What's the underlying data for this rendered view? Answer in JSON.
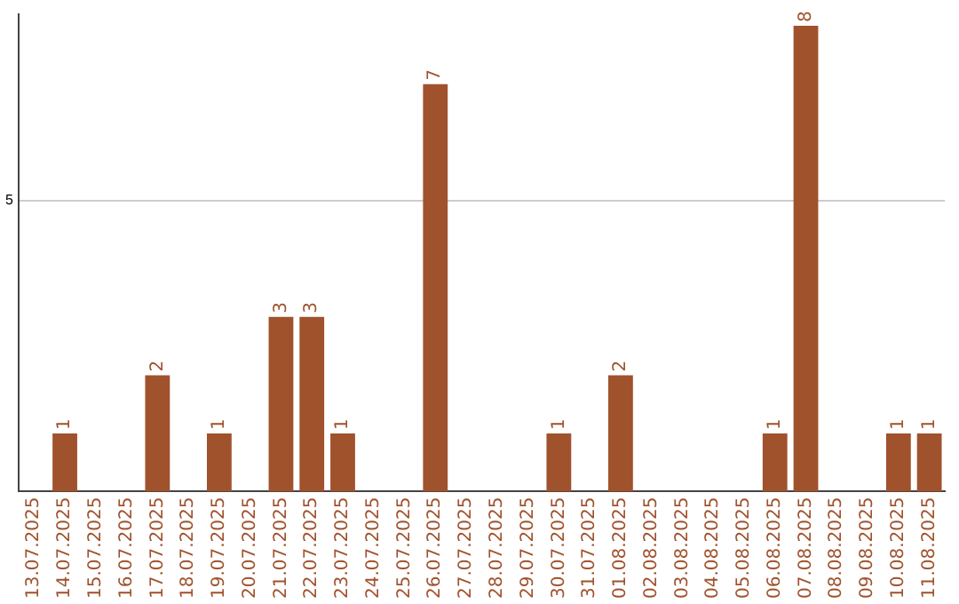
{
  "chart_data": {
    "type": "bar",
    "categories": [
      "13.07.2025",
      "14.07.2025",
      "15.07.2025",
      "16.07.2025",
      "17.07.2025",
      "18.07.2025",
      "19.07.2025",
      "20.07.2025",
      "21.07.2025",
      "22.07.2025",
      "23.07.2025",
      "24.07.2025",
      "25.07.2025",
      "26.07.2025",
      "27.07.2025",
      "28.07.2025",
      "29.07.2025",
      "30.07.2025",
      "31.07.2025",
      "01.08.2025",
      "02.08.2025",
      "03.08.2025",
      "04.08.2025",
      "05.08.2025",
      "06.08.2025",
      "07.08.2025",
      "08.08.2025",
      "09.08.2025",
      "10.08.2025",
      "11.08.2025"
    ],
    "values": [
      0,
      1,
      0,
      0,
      2,
      0,
      1,
      0,
      3,
      3,
      1,
      0,
      0,
      7,
      0,
      0,
      0,
      1,
      0,
      2,
      0,
      0,
      0,
      0,
      1,
      8,
      0,
      0,
      1,
      1
    ],
    "value_labels": [
      null,
      "1",
      null,
      null,
      "2",
      null,
      "1",
      null,
      "3",
      "3",
      "1",
      null,
      null,
      "7",
      null,
      null,
      null,
      "1",
      null,
      "2",
      null,
      null,
      null,
      null,
      "1",
      "8",
      null,
      null,
      "1",
      "1"
    ],
    "color": "#a0522d",
    "ylim": [
      0,
      8.2
    ],
    "yticks": [
      5
    ],
    "grid": "y",
    "legend": false
  }
}
